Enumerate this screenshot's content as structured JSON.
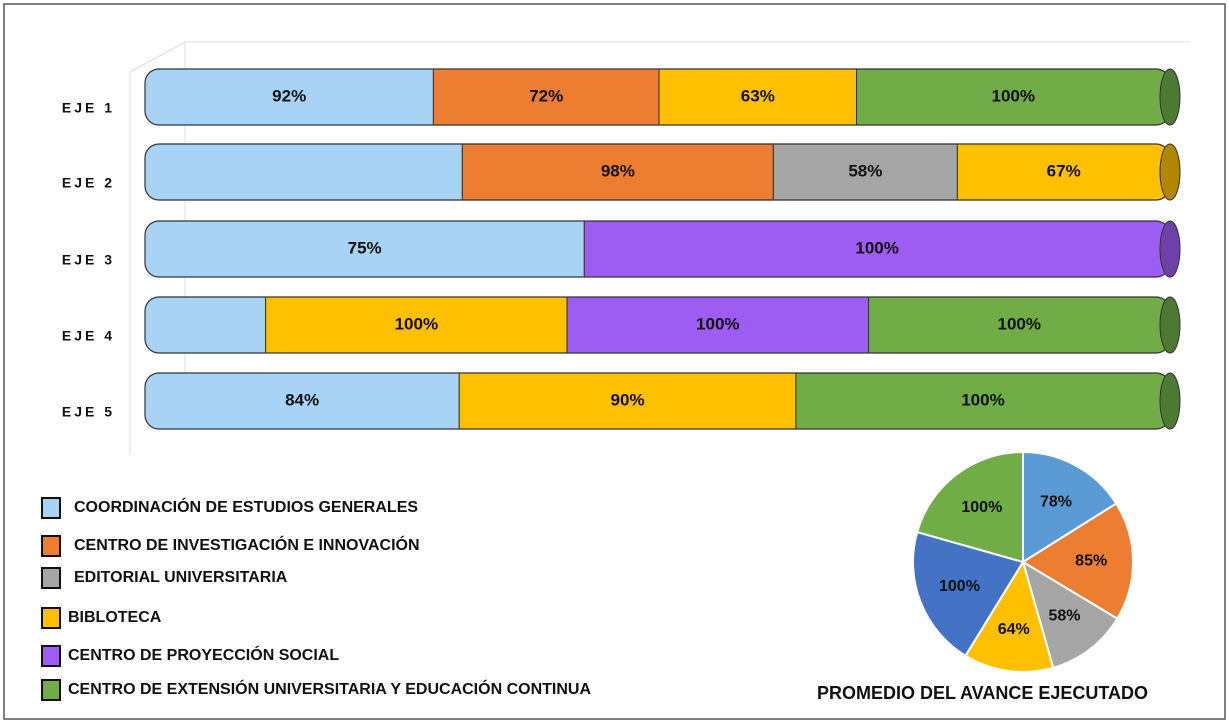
{
  "chart_data": [
    {
      "type": "bar",
      "orientation": "horizontal",
      "stacked": "percent",
      "legend": "bottom left",
      "categories": [
        "EJE 1",
        "EJE 2",
        "EJE 3",
        "EJE 4",
        "EJE 5"
      ],
      "series": [
        {
          "name": "COORDINACIÓN DE ESTUDIOS GENERALES",
          "color": "#a9d3f5",
          "values": [
            92,
            100,
            75,
            40,
            84
          ],
          "value_labels": [
            "92%",
            null,
            "75%",
            null,
            "84%"
          ]
        },
        {
          "name": "CENTRO DE INVESTIGACIÓN E INNOVACIÓN",
          "color": "#ed7d31",
          "values": [
            72,
            98,
            null,
            null,
            null
          ],
          "value_labels": [
            "72%",
            "98%",
            null,
            null,
            null
          ]
        },
        {
          "name": "EDITORIAL UNIVERSITARIA",
          "color": "#a5a5a5",
          "values": [
            null,
            58,
            null,
            null,
            null
          ],
          "value_labels": [
            null,
            "58%",
            null,
            null,
            null
          ]
        },
        {
          "name": "BIBLOTECA",
          "color": "#ffc000",
          "values": [
            63,
            67,
            null,
            100,
            90
          ],
          "value_labels": [
            "63%",
            "67%",
            null,
            "100%",
            "90%"
          ]
        },
        {
          "name": "CENTRO DE PROYECCIÓN SOCIAL",
          "color": "#9d5cf2",
          "values": [
            null,
            null,
            100,
            100,
            null
          ],
          "value_labels": [
            null,
            null,
            "100%",
            "100%",
            null
          ]
        },
        {
          "name": "CENTRO DE EXTENSIÓN UNIVERSITARIA Y EDUCACIÓN CONTINUA",
          "color": "#70ad47",
          "values": [
            100,
            null,
            null,
            100,
            100
          ],
          "value_labels": [
            "100%",
            null,
            null,
            "100%",
            "100%"
          ]
        }
      ]
    },
    {
      "type": "pie",
      "title": "PROMEDIO DEL AVANCE EJECUTADO",
      "values": [
        78,
        85,
        58,
        64,
        100,
        100
      ],
      "value_labels": [
        "78%",
        "85%",
        "58%",
        "64%",
        "100%",
        "100%"
      ],
      "colors": [
        "#5b9bd5",
        "#ed7d31",
        "#a5a5a5",
        "#ffc000",
        "#4472c4",
        "#70ad47"
      ]
    }
  ]
}
